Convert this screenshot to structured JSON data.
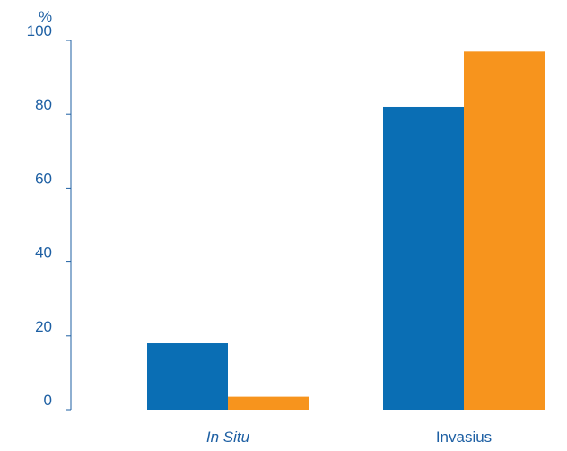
{
  "chart_data": {
    "type": "bar",
    "unit_label": "%",
    "categories": [
      {
        "label": "In Situ",
        "italic": true
      },
      {
        "label": "Invasius",
        "italic": false
      }
    ],
    "series": [
      {
        "values": [
          18,
          82
        ],
        "color": "#0a6eb4"
      },
      {
        "values": [
          3.5,
          97
        ],
        "color": "#f7941d"
      }
    ],
    "ylim": [
      0,
      100
    ],
    "yticks": [
      0,
      20,
      40,
      60,
      80,
      100
    ],
    "grid": false,
    "text_color": "#1d5fa3",
    "axis_color": "#1d5fa3"
  }
}
